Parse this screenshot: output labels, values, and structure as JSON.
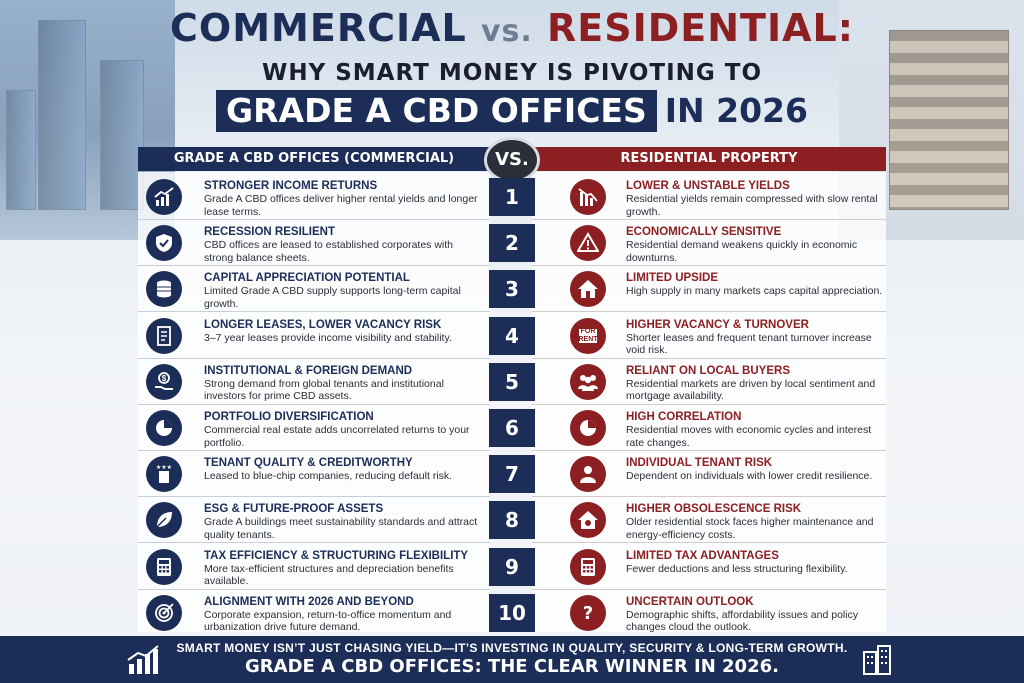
{
  "title": {
    "commercial": "COMMERCIAL",
    "vs": "vs.",
    "residential": "RESIDENTIAL:",
    "line2": "WHY SMART MONEY IS PIVOTING TO",
    "highlight": "GRADE A CBD OFFICES",
    "year": "IN 2026"
  },
  "headers": {
    "left": "GRADE A CBD OFFICES (COMMERCIAL)",
    "vs": "VS.",
    "right": "RESIDENTIAL PROPERTY"
  },
  "rows": [
    {
      "num": "1",
      "left_icon": "chart-icon",
      "left_title": "STRONGER INCOME RETURNS",
      "left_desc": "Grade A CBD offices deliver higher rental yields and longer lease terms.",
      "right_icon": "declining-chart-icon",
      "right_title": "LOWER & UNSTABLE YIELDS",
      "right_desc": "Residential yields remain compressed with slow rental growth."
    },
    {
      "num": "2",
      "left_icon": "shield-icon",
      "left_title": "RECESSION RESILIENT",
      "left_desc": "CBD offices are leased to established corporates with strong balance sheets.",
      "right_icon": "warning-icon",
      "right_title": "ECONOMICALLY SENSITIVE",
      "right_desc": "Residential demand weakens quickly in economic downturns."
    },
    {
      "num": "3",
      "left_icon": "coins-icon",
      "left_title": "CAPITAL APPRECIATION POTENTIAL",
      "left_desc": "Limited Grade A CBD supply supports long-term capital growth.",
      "right_icon": "house-icon",
      "right_title": "LIMITED UPSIDE",
      "right_desc": "High supply in many markets caps capital appreciation."
    },
    {
      "num": "4",
      "left_icon": "document-icon",
      "left_title": "LONGER LEASES, LOWER VACANCY RISK",
      "left_desc": "3–7 year leases provide income visibility and stability.",
      "right_icon": "for-rent-sign-icon",
      "right_title": "HIGHER VACANCY & TURNOVER",
      "right_desc": "Shorter leases and frequent tenant turnover increase void risk."
    },
    {
      "num": "5",
      "left_icon": "dollar-hand-icon",
      "left_title": "INSTITUTIONAL & FOREIGN DEMAND",
      "left_desc": "Strong demand from global tenants and institutional investors for prime CBD assets.",
      "right_icon": "people-icon",
      "right_title": "RELIANT ON LOCAL BUYERS",
      "right_desc": "Residential markets are driven by local sentiment and mortgage availability."
    },
    {
      "num": "6",
      "left_icon": "pie-chart-icon",
      "left_title": "PORTFOLIO DIVERSIFICATION",
      "left_desc": "Commercial real estate adds uncorrelated returns to your portfolio.",
      "right_icon": "pie-chart-icon",
      "right_title": "HIGH CORRELATION",
      "right_desc": "Residential moves with economic cycles and interest rate changes."
    },
    {
      "num": "7",
      "left_icon": "building-stars-icon",
      "left_title": "TENANT QUALITY & CREDITWORTHY",
      "left_desc": "Leased to blue-chip companies, reducing default risk.",
      "right_icon": "person-icon",
      "right_title": "INDIVIDUAL TENANT RISK",
      "right_desc": "Dependent on individuals with lower credit resilience."
    },
    {
      "num": "8",
      "left_icon": "leaf-icon",
      "left_title": "ESG & FUTURE-PROOF ASSETS",
      "left_desc": "Grade A buildings meet sustainability standards and attract quality tenants.",
      "right_icon": "house-gear-icon",
      "right_title": "HIGHER OBSOLESCENCE RISK",
      "right_desc": "Older residential stock faces higher maintenance and energy-efficiency costs."
    },
    {
      "num": "9",
      "left_icon": "calculator-icon",
      "left_title": "TAX EFFICIENCY & STRUCTURING FLEXIBILITY",
      "left_desc": "More tax-efficient structures and depreciation benefits available.",
      "right_icon": "calculator-icon",
      "right_title": "LIMITED TAX ADVANTAGES",
      "right_desc": "Fewer deductions and less structuring flexibility."
    },
    {
      "num": "10",
      "left_icon": "target-icon",
      "left_title": "ALIGNMENT WITH 2026 AND BEYOND",
      "left_desc": "Corporate expansion, return-to-office momentum and urbanization drive future demand.",
      "right_icon": "question-icon",
      "right_title": "UNCERTAIN OUTLOOK",
      "right_desc": "Demographic shifts, affordability issues and policy changes cloud the outlook."
    }
  ],
  "for_rent_label": "FOR RENT",
  "footer": {
    "line1": "SMART MONEY ISN’T JUST CHASING YIELD—IT’S INVESTING IN QUALITY, SECURITY & LONG-TERM GROWTH.",
    "line2": "GRADE A CBD OFFICES: THE CLEAR WINNER IN 2026."
  },
  "colors": {
    "navy": "#1c2d58",
    "maroon": "#8c1f22"
  }
}
